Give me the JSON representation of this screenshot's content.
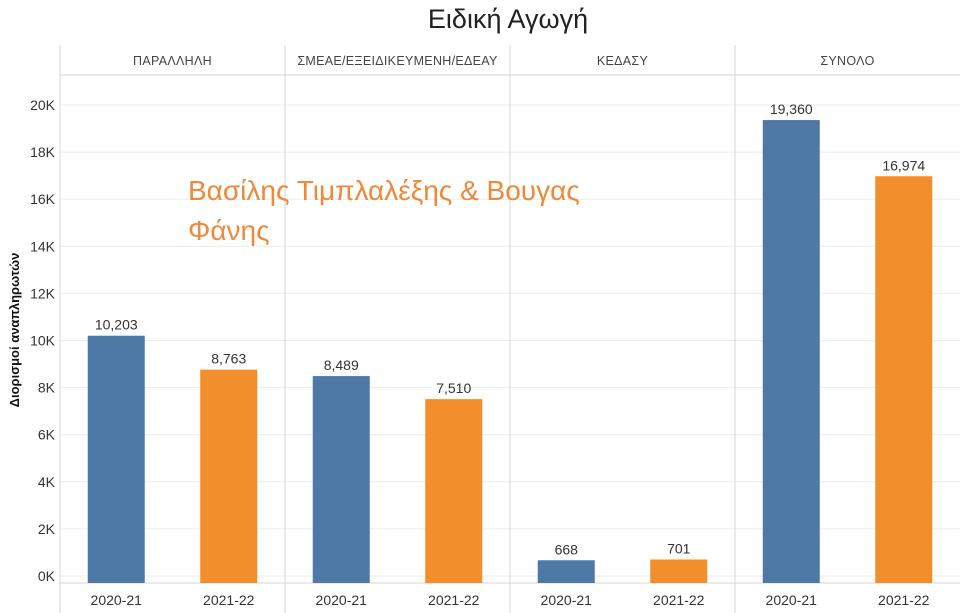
{
  "chart_data": {
    "type": "bar",
    "title": "Ειδική Αγωγή",
    "ylabel": "Διορισμοί αναπληρωτών",
    "ylim": [
      0,
      21000
    ],
    "yticks": [
      0,
      2000,
      4000,
      6000,
      8000,
      10000,
      12000,
      14000,
      16000,
      18000,
      20000
    ],
    "ytick_labels": [
      "0K",
      "2K",
      "4K",
      "6K",
      "8K",
      "10K",
      "12K",
      "14K",
      "16K",
      "18K",
      "20K"
    ],
    "grid": true,
    "panels": [
      {
        "name": "ΠΑΡΑΛΛΗΛΗ",
        "categories": [
          "2020-21",
          "2021-22"
        ],
        "values": [
          10203,
          8763
        ],
        "labels": [
          "10,203",
          "8,763"
        ]
      },
      {
        "name": "ΣΜΕΑΕ/ΕΞΕΙΔΙΚΕΥΜΕΝΗ/ΕΔΕΑΥ",
        "categories": [
          "2020-21",
          "2021-22"
        ],
        "values": [
          8489,
          7510
        ],
        "labels": [
          "8,489",
          "7,510"
        ]
      },
      {
        "name": "ΚΕΔΑΣΥ",
        "categories": [
          "2020-21",
          "2021-22"
        ],
        "values": [
          668,
          701
        ],
        "labels": [
          "668",
          "701"
        ]
      },
      {
        "name": "ΣΥΝΟΛΟ",
        "categories": [
          "2020-21",
          "2021-22"
        ],
        "values": [
          19360,
          16974
        ],
        "labels": [
          "19,360",
          "16,974"
        ]
      }
    ],
    "colors": {
      "2020-21": "#4e79a7",
      "2021-22": "#f28e2b"
    },
    "watermark": {
      "lines": [
        "Βασίλης Τιμπλαλέξης & Βουγας",
        "Φάνης"
      ],
      "color": "#f0883a"
    }
  }
}
